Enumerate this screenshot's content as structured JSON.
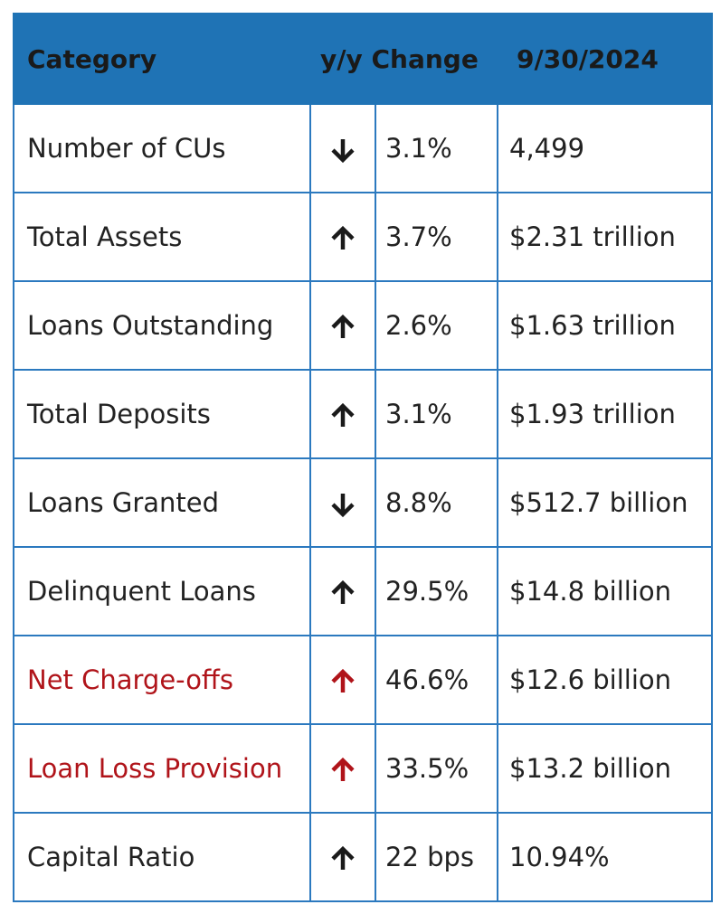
{
  "table": {
    "headers": {
      "category": "Category",
      "change": "y/y Change",
      "date": "9/30/2024"
    },
    "colors": {
      "header_bg": "#1f73b5",
      "border": "#2b79bf",
      "highlight_red": "#b0141a",
      "text": "#222222"
    },
    "rows": [
      {
        "category": "Number of CUs",
        "direction": "down",
        "direction_icon": "arrow-down-icon",
        "highlight": false,
        "change": "3.1%",
        "value": "4,499"
      },
      {
        "category": "Total Assets",
        "direction": "up",
        "direction_icon": "arrow-up-icon",
        "highlight": false,
        "change": "3.7%",
        "value": "$2.31 trillion"
      },
      {
        "category": "Loans Outstanding",
        "direction": "up",
        "direction_icon": "arrow-up-icon",
        "highlight": false,
        "change": "2.6%",
        "value": "$1.63 trillion"
      },
      {
        "category": "Total Deposits",
        "direction": "up",
        "direction_icon": "arrow-up-icon",
        "highlight": false,
        "change": "3.1%",
        "value": "$1.93 trillion"
      },
      {
        "category": "Loans Granted",
        "direction": "down",
        "direction_icon": "arrow-down-icon",
        "highlight": false,
        "change": "8.8%",
        "value": "$512.7 billion"
      },
      {
        "category": "Delinquent Loans",
        "direction": "up",
        "direction_icon": "arrow-up-icon",
        "highlight": false,
        "change": "29.5%",
        "value": "$14.8 billion"
      },
      {
        "category": "Net Charge-offs",
        "direction": "up",
        "direction_icon": "arrow-up-icon",
        "highlight": true,
        "change": "46.6%",
        "value": "$12.6 billion"
      },
      {
        "category": "Loan Loss Provision",
        "direction": "up",
        "direction_icon": "arrow-up-icon",
        "highlight": true,
        "change": "33.5%",
        "value": "$13.2 billion"
      },
      {
        "category": "Capital Ratio",
        "direction": "up",
        "direction_icon": "arrow-up-icon",
        "highlight": false,
        "change": "22 bps",
        "value": "10.94%"
      }
    ]
  }
}
